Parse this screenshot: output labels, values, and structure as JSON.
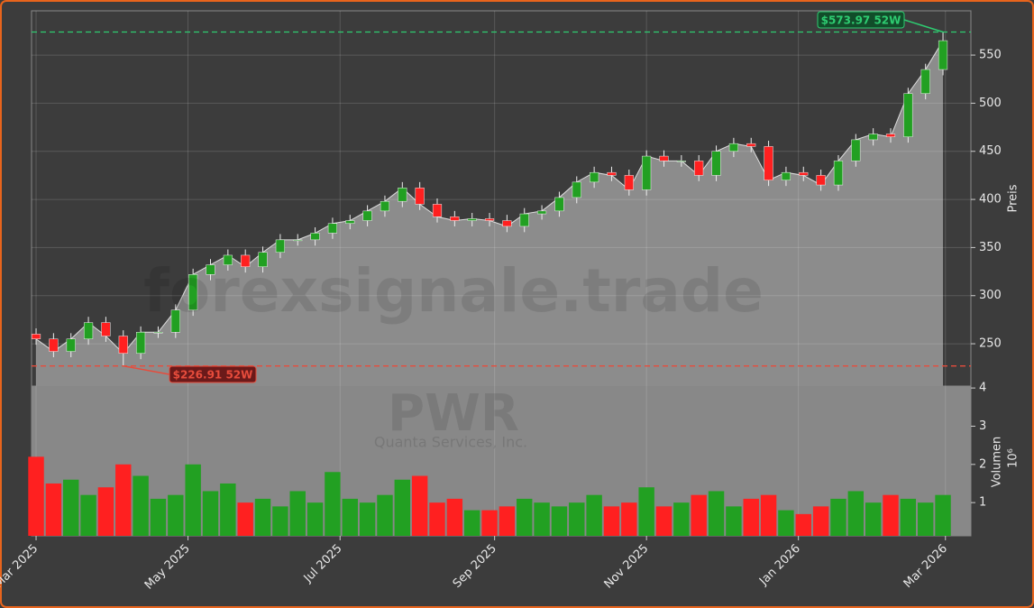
{
  "chart_data": {
    "type": "candlestick",
    "ylabel": "Preis",
    "watermark": {
      "site": "forexsignale.trade",
      "ticker": "PWR",
      "company": "Quanta Services, Inc."
    },
    "x": [
      0,
      1,
      2,
      3,
      4,
      5,
      6,
      7,
      8,
      9,
      10,
      11,
      12,
      13,
      14,
      15,
      16,
      17,
      18,
      19,
      20,
      21,
      22,
      23,
      24,
      25,
      26,
      27,
      28,
      29,
      30,
      31,
      32,
      33,
      34,
      35,
      36,
      37,
      38,
      39,
      40,
      41,
      42,
      43,
      44,
      45,
      46,
      47,
      48,
      49,
      50,
      51,
      52
    ],
    "xlim": [
      -0.26,
      53.6
    ],
    "xticks": [
      {
        "value": 0,
        "label": "Mar 2025"
      },
      {
        "value": 8.71,
        "label": "May 2025"
      },
      {
        "value": 17.43,
        "label": "Jul 2025"
      },
      {
        "value": 26.29,
        "label": "Sep 2025"
      },
      {
        "value": 35,
        "label": "Nov 2025"
      },
      {
        "value": 43.71,
        "label": "Jan 2026"
      },
      {
        "value": 52.14,
        "label": "Mar 2026"
      }
    ],
    "open": [
      260,
      255,
      242,
      255,
      272,
      258,
      240,
      262,
      262,
      285,
      322,
      332,
      342,
      330,
      345,
      358,
      358,
      365,
      375,
      378,
      388,
      398,
      412,
      395,
      382,
      378,
      380,
      378,
      372,
      385,
      388,
      402,
      418,
      428,
      425,
      410,
      445,
      440,
      440,
      425,
      450,
      458,
      455,
      420,
      428,
      425,
      415,
      440,
      462,
      468,
      465,
      510,
      535
    ],
    "high": [
      266,
      261,
      261,
      278,
      278,
      264,
      268,
      268,
      291,
      328,
      338,
      348,
      348,
      351,
      364,
      364,
      371,
      381,
      384,
      394,
      404,
      418,
      418,
      401,
      388,
      386,
      386,
      384,
      391,
      394,
      408,
      424,
      434,
      434,
      431,
      451,
      451,
      446,
      446,
      456,
      464,
      464,
      461,
      434,
      434,
      431,
      446,
      468,
      474,
      474,
      516,
      541,
      573.97
    ],
    "low": [
      249,
      236,
      236,
      249,
      252,
      226.91,
      234,
      256,
      256,
      279,
      316,
      326,
      324,
      324,
      339,
      352,
      352,
      359,
      369,
      372,
      382,
      392,
      389,
      376,
      372,
      372,
      372,
      366,
      366,
      379,
      382,
      396,
      412,
      419,
      404,
      404,
      434,
      434,
      419,
      419,
      444,
      449,
      414,
      414,
      419,
      409,
      409,
      434,
      456,
      459,
      459,
      504,
      529
    ],
    "close": [
      255,
      242,
      255,
      272,
      258,
      240,
      262,
      262,
      285,
      322,
      332,
      342,
      330,
      345,
      358,
      358,
      365,
      375,
      378,
      388,
      398,
      412,
      395,
      382,
      378,
      380,
      378,
      372,
      385,
      388,
      402,
      418,
      428,
      425,
      410,
      445,
      440,
      440,
      425,
      450,
      458,
      455,
      420,
      428,
      425,
      415,
      440,
      462,
      468,
      465,
      510,
      535,
      565
    ],
    "ylim": [
      206,
      596
    ],
    "yticks": [
      250,
      300,
      350,
      400,
      450,
      500,
      550
    ],
    "up_color": "#22a022",
    "down_color": "#ff2020",
    "area_color": "#8c8c8c",
    "grid": true,
    "annotations": [
      {
        "value": 573.97,
        "label": "$573.97 52W",
        "color": "#2ecc71",
        "at": 52
      },
      {
        "value": 226.91,
        "label": "$226.91 52W",
        "color": "#e74c3c",
        "at": 5
      }
    ],
    "volume": {
      "ylabel": "Volumen",
      "offset_label": "10⁶",
      "ylim": [
        0.13,
        4.05
      ],
      "yticks": [
        1,
        2,
        3,
        4
      ],
      "values": [
        2.2,
        1.5,
        1.6,
        1.2,
        1.4,
        2.0,
        1.7,
        1.1,
        1.2,
        2.0,
        1.3,
        1.5,
        1.0,
        1.1,
        0.9,
        1.3,
        1.0,
        1.8,
        1.1,
        1.0,
        1.2,
        1.6,
        1.7,
        1.0,
        1.1,
        0.8,
        0.8,
        0.9,
        1.1,
        1.0,
        0.9,
        1.0,
        1.2,
        0.9,
        1.0,
        1.4,
        0.9,
        1.0,
        1.2,
        1.3,
        0.9,
        1.1,
        1.2,
        0.8,
        0.7,
        0.9,
        1.1,
        1.3,
        1.0,
        1.2,
        1.1,
        1.0,
        1.2
      ]
    }
  }
}
